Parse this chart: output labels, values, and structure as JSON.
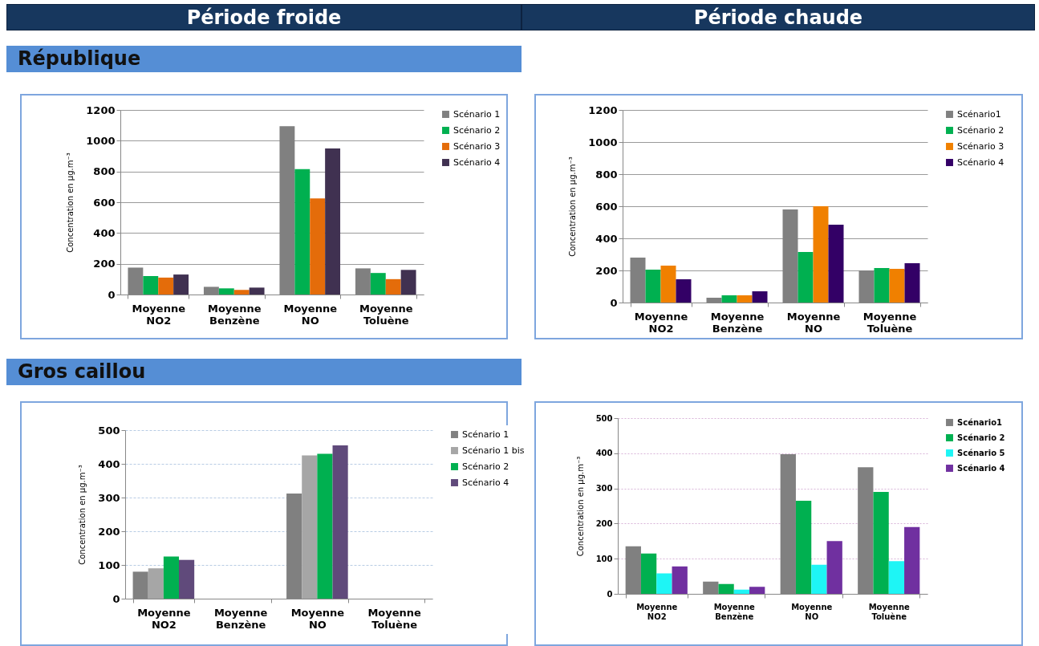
{
  "chart_data": [
    {
      "type": "bar",
      "annotations": [
        "Période froide",
        "République"
      ],
      "ylabel": "Concentration en µg.m⁻³",
      "categories": [
        "Moyenne NO2",
        "Moyenne Benzène",
        "Moyenne NO",
        "Moyenne Toluène"
      ],
      "ylim": [
        0,
        1200
      ],
      "yticks": [
        0,
        200,
        400,
        600,
        800,
        1000,
        1200
      ],
      "grid": "y",
      "legend": "right",
      "series": [
        {
          "name": "Scénario 1",
          "color": "#808080",
          "values": [
            175,
            50,
            1095,
            170
          ]
        },
        {
          "name": "Scénario 2",
          "color": "#00b050",
          "values": [
            120,
            40,
            815,
            140
          ]
        },
        {
          "name": "Scénario 3",
          "color": "#e46c0a",
          "values": [
            110,
            30,
            625,
            100
          ]
        },
        {
          "name": "Scénario 4",
          "color": "#403151",
          "values": [
            130,
            45,
            950,
            160
          ]
        }
      ]
    },
    {
      "type": "bar",
      "annotations": [
        "Période chaude"
      ],
      "ylabel": "Concentration en µg.m⁻³",
      "categories": [
        "Moyenne NO2",
        "Moyenne Benzène",
        "Moyenne NO",
        "Moyenne Toluène"
      ],
      "ylim": [
        0,
        1200
      ],
      "yticks": [
        0,
        200,
        400,
        600,
        800,
        1000,
        1200
      ],
      "grid": "y",
      "legend": "right",
      "series": [
        {
          "name": "Scénario1",
          "color": "#808080",
          "values": [
            280,
            30,
            580,
            200
          ]
        },
        {
          "name": "Scénario 2",
          "color": "#00b050",
          "values": [
            205,
            45,
            315,
            215
          ]
        },
        {
          "name": "Scénario 3",
          "color": "#f08000",
          "values": [
            230,
            45,
            600,
            210
          ]
        },
        {
          "name": "Scénario 4",
          "color": "#330066",
          "values": [
            145,
            70,
            485,
            245
          ]
        }
      ]
    },
    {
      "type": "bar",
      "annotations": [
        "Gros caillou"
      ],
      "ylabel": "Concentration en µg.m⁻³",
      "categories": [
        "Moyenne NO2",
        "Moyenne Benzène",
        "Moyenne NO",
        "Moyenne Toluène"
      ],
      "ylim": [
        0,
        500
      ],
      "yticks": [
        0,
        100,
        200,
        300,
        400,
        500
      ],
      "grid": "y",
      "legend": "right",
      "series": [
        {
          "name": "Scénario 1",
          "color": "#808080",
          "values": [
            80,
            null,
            312,
            null
          ]
        },
        {
          "name": "Scénario 1 bis",
          "color": "#a6a6a6",
          "values": [
            90,
            null,
            425,
            null
          ]
        },
        {
          "name": "Scénario 2",
          "color": "#00b050",
          "values": [
            125,
            null,
            430,
            null
          ]
        },
        {
          "name": "Scénario 4",
          "color": "#604a7b",
          "values": [
            115,
            null,
            455,
            null
          ]
        }
      ]
    },
    {
      "type": "bar",
      "ylabel": "Concentration en µg.m⁻³",
      "categories": [
        "Moyenne NO2",
        "Moyenne Benzène",
        "Moyenne NO",
        "Moyenne Toluène"
      ],
      "ylim": [
        0,
        500
      ],
      "yticks": [
        0,
        100,
        200,
        300,
        400,
        500
      ],
      "grid": "y",
      "legend": "right",
      "series": [
        {
          "name": "Scénario1",
          "color": "#808080",
          "values": [
            135,
            35,
            397,
            360
          ]
        },
        {
          "name": "Scénario 2",
          "color": "#00b050",
          "values": [
            115,
            28,
            265,
            290
          ]
        },
        {
          "name": "Scénario 5",
          "color": "#1ef5f5",
          "values": [
            58,
            12,
            83,
            93
          ]
        },
        {
          "name": "Scénario 4",
          "color": "#7030a0",
          "values": [
            78,
            20,
            150,
            190
          ]
        }
      ]
    }
  ]
}
